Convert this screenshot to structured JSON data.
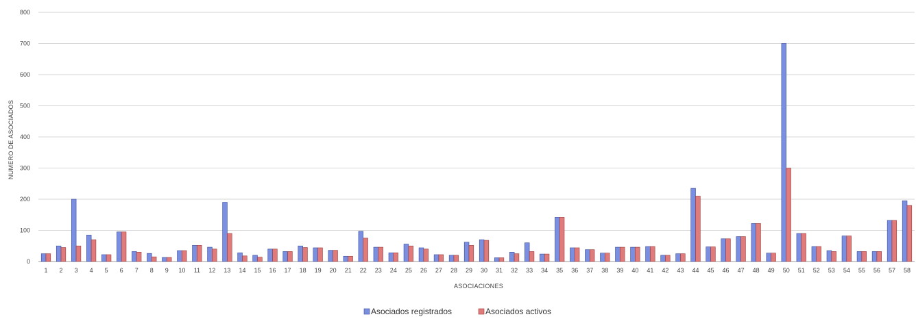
{
  "chart_data": {
    "type": "bar",
    "xlabel": "ASOCIACIONES",
    "ylabel": "NUMERO DE ASOCIADOS",
    "ylim": [
      0,
      800
    ],
    "yticks": [
      0,
      100,
      200,
      300,
      400,
      500,
      600,
      700,
      800
    ],
    "grid": true,
    "legend_position": "bottom",
    "categories": [
      "1",
      "2",
      "3",
      "4",
      "5",
      "6",
      "7",
      "8",
      "9",
      "10",
      "11",
      "12",
      "13",
      "14",
      "15",
      "16",
      "17",
      "18",
      "19",
      "20",
      "21",
      "22",
      "23",
      "24",
      "25",
      "26",
      "27",
      "28",
      "29",
      "30",
      "31",
      "32",
      "33",
      "34",
      "35",
      "36",
      "37",
      "38",
      "39",
      "40",
      "41",
      "42",
      "43",
      "44",
      "45",
      "46",
      "47",
      "48",
      "49",
      "50",
      "51",
      "52",
      "53",
      "54",
      "55",
      "56",
      "57",
      "58"
    ],
    "series": [
      {
        "name": "Asociados registrados",
        "color": "#7b8fe0",
        "values": [
          25,
          50,
          200,
          85,
          22,
          95,
          32,
          26,
          13,
          35,
          52,
          46,
          190,
          28,
          20,
          40,
          32,
          50,
          44,
          36,
          17,
          97,
          46,
          28,
          56,
          44,
          22,
          20,
          62,
          70,
          12,
          30,
          60,
          24,
          142,
          44,
          38,
          27,
          46,
          46,
          48,
          20,
          25,
          235,
          47,
          73,
          80,
          122,
          27,
          700,
          90,
          48,
          35,
          82,
          32,
          32,
          132,
          195
        ]
      },
      {
        "name": "Asociados activos",
        "color": "#e07b7b",
        "values": [
          25,
          45,
          50,
          70,
          22,
          95,
          30,
          15,
          13,
          35,
          52,
          40,
          90,
          18,
          14,
          40,
          32,
          45,
          44,
          36,
          17,
          75,
          46,
          28,
          50,
          40,
          22,
          20,
          52,
          68,
          12,
          25,
          32,
          24,
          142,
          44,
          38,
          27,
          46,
          46,
          48,
          20,
          25,
          210,
          47,
          73,
          80,
          122,
          27,
          300,
          90,
          48,
          32,
          82,
          32,
          32,
          132,
          180
        ]
      }
    ]
  },
  "legend": {
    "items": [
      {
        "label": "Asociados registrados",
        "color": "#7b8fe0"
      },
      {
        "label": "Asociados activos",
        "color": "#e07b7b"
      }
    ]
  }
}
